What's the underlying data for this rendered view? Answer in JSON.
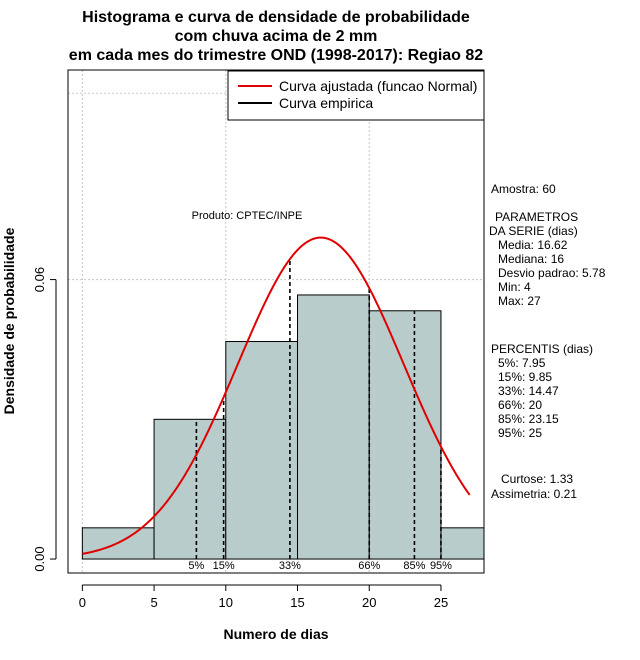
{
  "chart_data": {
    "type": "bar",
    "title_lines": [
      "Histograma e curva de densidade de probabilidade",
      "com chuva acima de 2 mm",
      "em cada mes do trimestre OND (1998-2017): Regiao 82"
    ],
    "xlabel": "Numero de dias",
    "ylabel": "Densidade de probabilidade",
    "xlim": [
      -1,
      28
    ],
    "ylim": [
      -0.003,
      0.105
    ],
    "x_ticks": [
      0,
      5,
      10,
      15,
      20,
      25
    ],
    "y_ticks": [
      0.0,
      0.06
    ],
    "y_tick_labels": [
      "0.00",
      "0.06"
    ],
    "grid_x": [
      0,
      10,
      20
    ],
    "grid_y": [
      0.06
    ],
    "bins": [
      {
        "x0": 0,
        "x1": 5,
        "density": 0.0067
      },
      {
        "x0": 5,
        "x1": 10,
        "density": 0.03
      },
      {
        "x0": 10,
        "x1": 15,
        "density": 0.0467
      },
      {
        "x0": 15,
        "x1": 20,
        "density": 0.0567
      },
      {
        "x0": 20,
        "x1": 25,
        "density": 0.0533
      },
      {
        "x0": 25,
        "x1": 28,
        "density": 0.0067
      }
    ],
    "bar_color": "#b9cccc",
    "curve_color": "#e00000",
    "normal_fit": {
      "mean": 16.62,
      "sd": 5.78,
      "x_from": 0,
      "x_to": 27
    },
    "percentile_lines": [
      {
        "label": "5%",
        "x": 7.95
      },
      {
        "label": "15%",
        "x": 9.85
      },
      {
        "label": "33%",
        "x": 14.47
      },
      {
        "label": "66%",
        "x": 20
      },
      {
        "label": "85%",
        "x": 23.15
      },
      {
        "label": "95%",
        "x": 25
      }
    ],
    "legend": {
      "position": "top-right",
      "entries": [
        {
          "label": "Curva ajustada (funcao Normal)",
          "color": "#e00000"
        },
        {
          "label": "Curva empirica",
          "color": "#000000"
        }
      ]
    },
    "annotation": "Produto: CPTEC/INPE",
    "side_panel": [
      "Amostra: 60",
      "PARAMETROS",
      "DA SERIE (dias)",
      "Media: 16.62",
      "Mediana: 16",
      "Desvio padrao: 5.78",
      "Min: 4",
      "Max: 27",
      "PERCENTIS (dias)",
      "5%: 7.95",
      "15%: 9.85",
      "33%: 14.47",
      "66%: 20",
      "85%: 23.15",
      "95%: 25",
      "Curtose: 1.33",
      "Assimetria: 0.21"
    ]
  }
}
